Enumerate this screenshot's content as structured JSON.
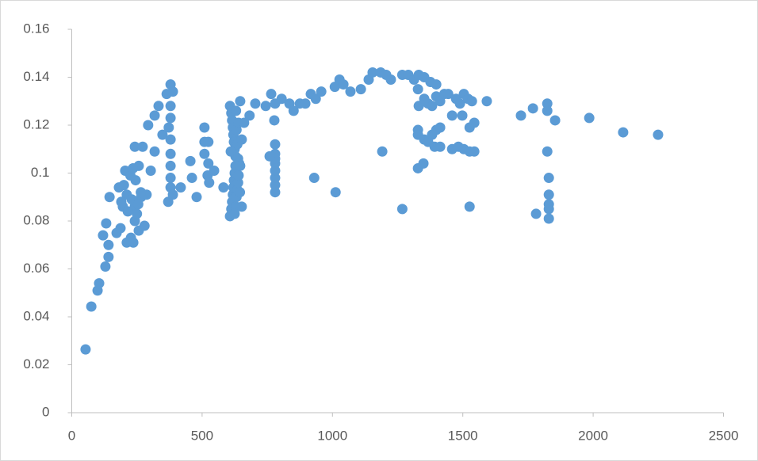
{
  "chart_data": {
    "type": "scatter",
    "color": "#5b9bd5",
    "x": [
      53,
      75,
      99,
      105,
      129,
      141,
      141,
      120,
      132,
      145,
      172,
      187,
      181,
      196,
      211,
      205,
      227,
      211,
      236,
      242,
      242,
      242,
      257,
      266,
      257,
      272,
      279,
      287,
      293,
      303,
      318,
      318,
      333,
      348,
      364,
      372,
      370,
      379,
      388,
      379,
      379,
      379,
      379,
      379,
      379,
      379,
      388,
      418,
      455,
      461,
      479,
      509,
      509,
      509,
      521,
      527,
      524,
      524,
      546,
      582,
      200,
      215,
      230,
      245,
      225,
      250,
      265,
      190,
      235,
      255,
      607,
      607,
      612,
      612,
      615,
      615,
      618,
      618,
      620,
      620,
      622,
      622,
      625,
      625,
      628,
      628,
      630,
      630,
      632,
      632,
      635,
      635,
      638,
      638,
      640,
      640,
      642,
      645,
      610,
      625,
      646,
      661,
      652,
      646,
      652,
      682,
      704,
      744,
      765,
      780,
      777,
      780,
      780,
      780,
      780,
      780,
      780,
      780,
      780,
      759,
      805,
      835,
      851,
      875,
      896,
      917,
      936,
      957,
      930,
      1009,
      1027,
      1042,
      1069,
      1109,
      1139,
      1154,
      1185,
      1206,
      1224,
      1191,
      1012,
      1268,
      1268,
      1291,
      1313,
      1331,
      1352,
      1376,
      1398,
      1328,
      1331,
      1352,
      1367,
      1382,
      1398,
      1413,
      1429,
      1444,
      1459,
      1474,
      1489,
      1504,
      1520,
      1535,
      1498,
      1592,
      1328,
      1328,
      1352,
      1367,
      1382,
      1398,
      1413,
      1392,
      1413,
      1328,
      1349,
      1459,
      1483,
      1504,
      1526,
      1544,
      1526,
      1544,
      1526,
      1723,
      1769,
      1824,
      1824,
      1824,
      1830,
      1830,
      1830,
      1830,
      1830,
      1781,
      1854,
      1985,
      2115,
      2249
    ],
    "values": [
      0.0264,
      0.0443,
      0.051,
      0.054,
      0.061,
      0.065,
      0.07,
      0.074,
      0.079,
      0.09,
      0.075,
      0.077,
      0.094,
      0.086,
      0.091,
      0.101,
      0.073,
      0.071,
      0.071,
      0.086,
      0.08,
      0.111,
      0.076,
      0.09,
      0.103,
      0.111,
      0.078,
      0.091,
      0.12,
      0.101,
      0.124,
      0.109,
      0.128,
      0.116,
      0.133,
      0.119,
      0.088,
      0.137,
      0.134,
      0.128,
      0.123,
      0.114,
      0.108,
      0.103,
      0.098,
      0.094,
      0.091,
      0.094,
      0.105,
      0.098,
      0.09,
      0.119,
      0.113,
      0.108,
      0.099,
      0.096,
      0.113,
      0.104,
      0.101,
      0.094,
      0.095,
      0.084,
      0.089,
      0.097,
      0.099,
      0.083,
      0.092,
      0.088,
      0.102,
      0.087,
      0.082,
      0.128,
      0.085,
      0.125,
      0.088,
      0.122,
      0.091,
      0.119,
      0.094,
      0.116,
      0.097,
      0.113,
      0.1,
      0.11,
      0.103,
      0.107,
      0.086,
      0.126,
      0.09,
      0.118,
      0.093,
      0.112,
      0.096,
      0.106,
      0.099,
      0.121,
      0.104,
      0.092,
      0.109,
      0.083,
      0.13,
      0.121,
      0.114,
      0.103,
      0.086,
      0.124,
      0.129,
      0.128,
      0.133,
      0.129,
      0.122,
      0.112,
      0.108,
      0.092,
      0.095,
      0.098,
      0.101,
      0.104,
      0.106,
      0.107,
      0.131,
      0.129,
      0.126,
      0.129,
      0.129,
      0.133,
      0.131,
      0.134,
      0.098,
      0.136,
      0.139,
      0.137,
      0.134,
      0.135,
      0.139,
      0.142,
      0.142,
      0.141,
      0.139,
      0.109,
      0.092,
      0.085,
      0.141,
      0.141,
      0.139,
      0.141,
      0.14,
      0.138,
      0.137,
      0.135,
      0.128,
      0.131,
      0.129,
      0.128,
      0.132,
      0.13,
      0.133,
      0.133,
      0.124,
      0.131,
      0.129,
      0.133,
      0.131,
      0.13,
      0.124,
      0.13,
      0.118,
      0.116,
      0.114,
      0.113,
      0.116,
      0.118,
      0.119,
      0.111,
      0.111,
      0.102,
      0.104,
      0.11,
      0.111,
      0.11,
      0.109,
      0.109,
      0.119,
      0.121,
      0.086,
      0.124,
      0.127,
      0.129,
      0.126,
      0.109,
      0.098,
      0.091,
      0.087,
      0.085,
      0.081,
      0.083,
      0.122,
      0.123,
      0.117,
      0.116
    ],
    "xlim": [
      0,
      2500
    ],
    "xticks": [
      0,
      500,
      1000,
      1500,
      2000,
      2500
    ],
    "ylim": [
      0,
      0.16
    ],
    "yticks": [
      0,
      0.02,
      0.04,
      0.06,
      0.08,
      0.1,
      0.12,
      0.14,
      0.16
    ]
  }
}
